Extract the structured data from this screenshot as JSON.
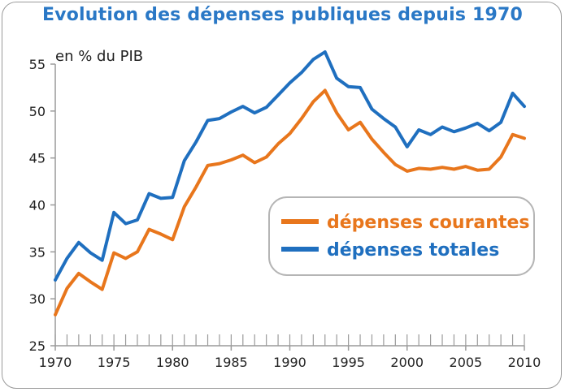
{
  "title": "Evolution des dépenses publiques depuis 1970",
  "colors": {
    "title": "#2a78c6",
    "courantes": "#e8761c",
    "totales": "#1f6fbf",
    "axis": "#9a9a9a",
    "legend_border": "#b5b5b5"
  },
  "chart_data": {
    "type": "line",
    "title": "Evolution des dépenses publiques depuis 1970",
    "unit_label": "en % du PIB",
    "xlabel": "",
    "ylabel": "",
    "xlim": [
      1970,
      2010
    ],
    "ylim": [
      25,
      55
    ],
    "x_ticks": [
      1970,
      1975,
      1980,
      1985,
      1990,
      1995,
      2000,
      2005,
      2010
    ],
    "y_ticks": [
      25,
      30,
      35,
      40,
      45,
      50,
      55
    ],
    "grid": false,
    "legend_position": "center-right",
    "x": [
      1970,
      1971,
      1972,
      1973,
      1974,
      1975,
      1976,
      1977,
      1978,
      1979,
      1980,
      1981,
      1982,
      1983,
      1984,
      1985,
      1986,
      1987,
      1988,
      1989,
      1990,
      1991,
      1992,
      1993,
      1994,
      1995,
      1996,
      1997,
      1998,
      1999,
      2000,
      2001,
      2002,
      2003,
      2004,
      2005,
      2006,
      2007,
      2008,
      2009,
      2010
    ],
    "series": [
      {
        "name": "dépenses courantes",
        "color": "#e8761c",
        "values": [
          28.3,
          31.1,
          32.7,
          31.8,
          31.0,
          34.9,
          34.3,
          35.0,
          37.4,
          36.9,
          36.3,
          39.8,
          41.9,
          44.2,
          44.4,
          44.8,
          45.3,
          44.5,
          45.1,
          46.5,
          47.6,
          49.2,
          51.0,
          52.2,
          49.8,
          48.0,
          48.8,
          47.0,
          45.6,
          44.3,
          43.6,
          43.9,
          43.8,
          44.0,
          43.8,
          44.1,
          43.7,
          43.8,
          45.1,
          47.5,
          47.1
        ]
      },
      {
        "name": "dépenses totales",
        "color": "#1f6fbf",
        "values": [
          32.0,
          34.3,
          36.0,
          34.9,
          34.1,
          39.2,
          38.0,
          38.4,
          41.2,
          40.7,
          40.8,
          44.7,
          46.7,
          49.0,
          49.2,
          49.9,
          50.5,
          49.8,
          50.4,
          51.7,
          53.0,
          54.1,
          55.5,
          56.3,
          53.5,
          52.6,
          52.5,
          50.2,
          49.2,
          48.3,
          46.2,
          48.0,
          47.5,
          48.3,
          47.8,
          48.2,
          48.7,
          47.9,
          48.8,
          51.9,
          50.5
        ]
      }
    ]
  }
}
